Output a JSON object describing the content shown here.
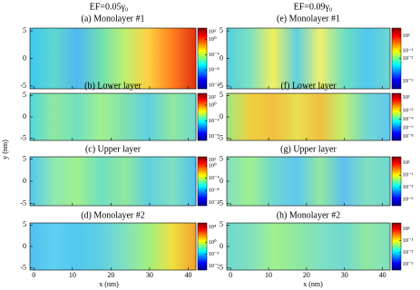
{
  "headers": [
    "EF=0.05γ₀",
    "EF=0.09γ₀"
  ],
  "xlabel": "x (nm)",
  "ylabel": "y (nm)",
  "chart_data": [
    {
      "type": "heatmap",
      "title": "(a) Monolayer #1",
      "xlim": [
        -1,
        42
      ],
      "xticks": [
        0,
        10,
        20,
        30,
        40
      ],
      "ylim": [
        -5.5,
        5.5
      ],
      "yticks": [
        -5,
        0,
        5
      ],
      "colorbar": {
        "log_scale": true,
        "lim": [
          1e-13,
          1000
        ],
        "ticks": [
          {
            "value": 100,
            "label": "10²"
          },
          {
            "value": 1,
            "label": "10⁰"
          },
          {
            "value": 0.0001,
            "label": "10⁻⁴"
          },
          {
            "value": 1e-08,
            "label": "10⁻⁸"
          },
          {
            "value": 1e-12,
            "label": "10⁻¹²"
          }
        ]
      }
    },
    {
      "type": "heatmap",
      "title": "(b) Lower layer",
      "xlim": [
        -1,
        42
      ],
      "xticks": [
        0,
        10,
        20,
        30,
        40
      ],
      "ylim": [
        -5.5,
        5.5
      ],
      "yticks": [
        -5,
        0,
        5
      ],
      "colorbar": {
        "log_scale": true,
        "lim": [
          1e-09,
          1000
        ],
        "ticks": [
          {
            "value": 100,
            "label": "10²"
          },
          {
            "value": 1,
            "label": "10⁰"
          },
          {
            "value": 0.0001,
            "label": "10⁻⁴"
          },
          {
            "value": 1e-08,
            "label": "10⁻⁸"
          }
        ]
      }
    },
    {
      "type": "heatmap",
      "title": "(c) Upper layer",
      "xlim": [
        -1,
        42
      ],
      "xticks": [
        0,
        10,
        20,
        30,
        40
      ],
      "ylim": [
        -5.5,
        5.5
      ],
      "yticks": [
        -5,
        0,
        5
      ],
      "colorbar": {
        "log_scale": true,
        "lim": [
          1e-13,
          1000
        ],
        "ticks": [
          {
            "value": 100,
            "label": "10²"
          },
          {
            "value": 1,
            "label": "10⁰"
          },
          {
            "value": 0.0001,
            "label": "10⁻⁴"
          },
          {
            "value": 1e-08,
            "label": "10⁻⁸"
          },
          {
            "value": 1e-12,
            "label": "10⁻¹²"
          }
        ]
      }
    },
    {
      "type": "heatmap",
      "title": "(d) Monolayer #2",
      "xlim": [
        -1,
        42
      ],
      "xticks": [
        0,
        10,
        20,
        30,
        40
      ],
      "ylim": [
        -5.5,
        5.5
      ],
      "yticks": [
        -5,
        0,
        5
      ],
      "colorbar": {
        "log_scale": true,
        "lim": [
          1e-07,
          100000
        ],
        "ticks": [
          {
            "value": 10000,
            "label": "10⁴"
          },
          {
            "value": 1,
            "label": "10⁰"
          },
          {
            "value": 0.001,
            "label": "10⁻³"
          },
          {
            "value": 1e-06,
            "label": "10⁻⁶"
          }
        ]
      }
    },
    {
      "type": "heatmap",
      "title": "(e) Monolayer #1",
      "xlim": [
        -1,
        42
      ],
      "xticks": [
        0,
        10,
        20,
        30,
        40
      ],
      "ylim": [
        -5.5,
        5.5
      ],
      "yticks": [
        -5,
        0,
        5
      ],
      "colorbar": {
        "log_scale": true,
        "lim": [
          1e-06,
          100
        ],
        "ticks": [
          {
            "value": 10,
            "label": "10¹"
          },
          {
            "value": 0.1,
            "label": "10⁻¹"
          },
          {
            "value": 0.01,
            "label": "10⁻²"
          },
          {
            "value": 1e-05,
            "label": "10⁻⁵"
          }
        ]
      }
    },
    {
      "type": "heatmap",
      "title": "(f) Lower layer",
      "xlim": [
        -1,
        42
      ],
      "xticks": [
        0,
        10,
        20,
        30,
        40
      ],
      "ylim": [
        -5.5,
        5.5
      ],
      "yticks": [
        -5,
        0,
        5
      ],
      "colorbar": {
        "log_scale": true,
        "lim": [
          1e-09,
          100
        ],
        "ticks": [
          {
            "value": 10,
            "label": "10¹"
          },
          {
            "value": 0.01,
            "label": "10⁻²"
          },
          {
            "value": 0.0001,
            "label": "10⁻⁴"
          },
          {
            "value": 1e-06,
            "label": "10⁻⁶"
          },
          {
            "value": 1e-08,
            "label": "10⁻⁸"
          }
        ]
      }
    },
    {
      "type": "heatmap",
      "title": "(g) Upper layer",
      "xlim": [
        -1,
        42
      ],
      "xticks": [
        0,
        10,
        20,
        30,
        40
      ],
      "ylim": [
        -5.5,
        5.5
      ],
      "yticks": [
        -5,
        0,
        5
      ],
      "colorbar": {
        "log_scale": true,
        "lim": [
          1e-06,
          100
        ],
        "ticks": [
          {
            "value": 10,
            "label": "10¹"
          },
          {
            "value": 0.1,
            "label": "10⁻¹"
          },
          {
            "value": 0.001,
            "label": "10⁻³"
          },
          {
            "value": 1e-05,
            "label": "10⁻⁵"
          }
        ]
      }
    },
    {
      "type": "heatmap",
      "title": "(h) Monolayer #2",
      "xlim": [
        -1,
        42
      ],
      "xticks": [
        0,
        10,
        20,
        30,
        40
      ],
      "ylim": [
        -5.5,
        5.5
      ],
      "yticks": [
        -5,
        0,
        5
      ],
      "colorbar": {
        "log_scale": true,
        "lim": [
          1e-06,
          100
        ],
        "ticks": [
          {
            "value": 10,
            "label": "10¹"
          },
          {
            "value": 0.1,
            "label": "10⁻¹"
          },
          {
            "value": 0.001,
            "label": "10⁻³"
          },
          {
            "value": 1e-05,
            "label": "10⁻⁵"
          }
        ]
      }
    }
  ]
}
